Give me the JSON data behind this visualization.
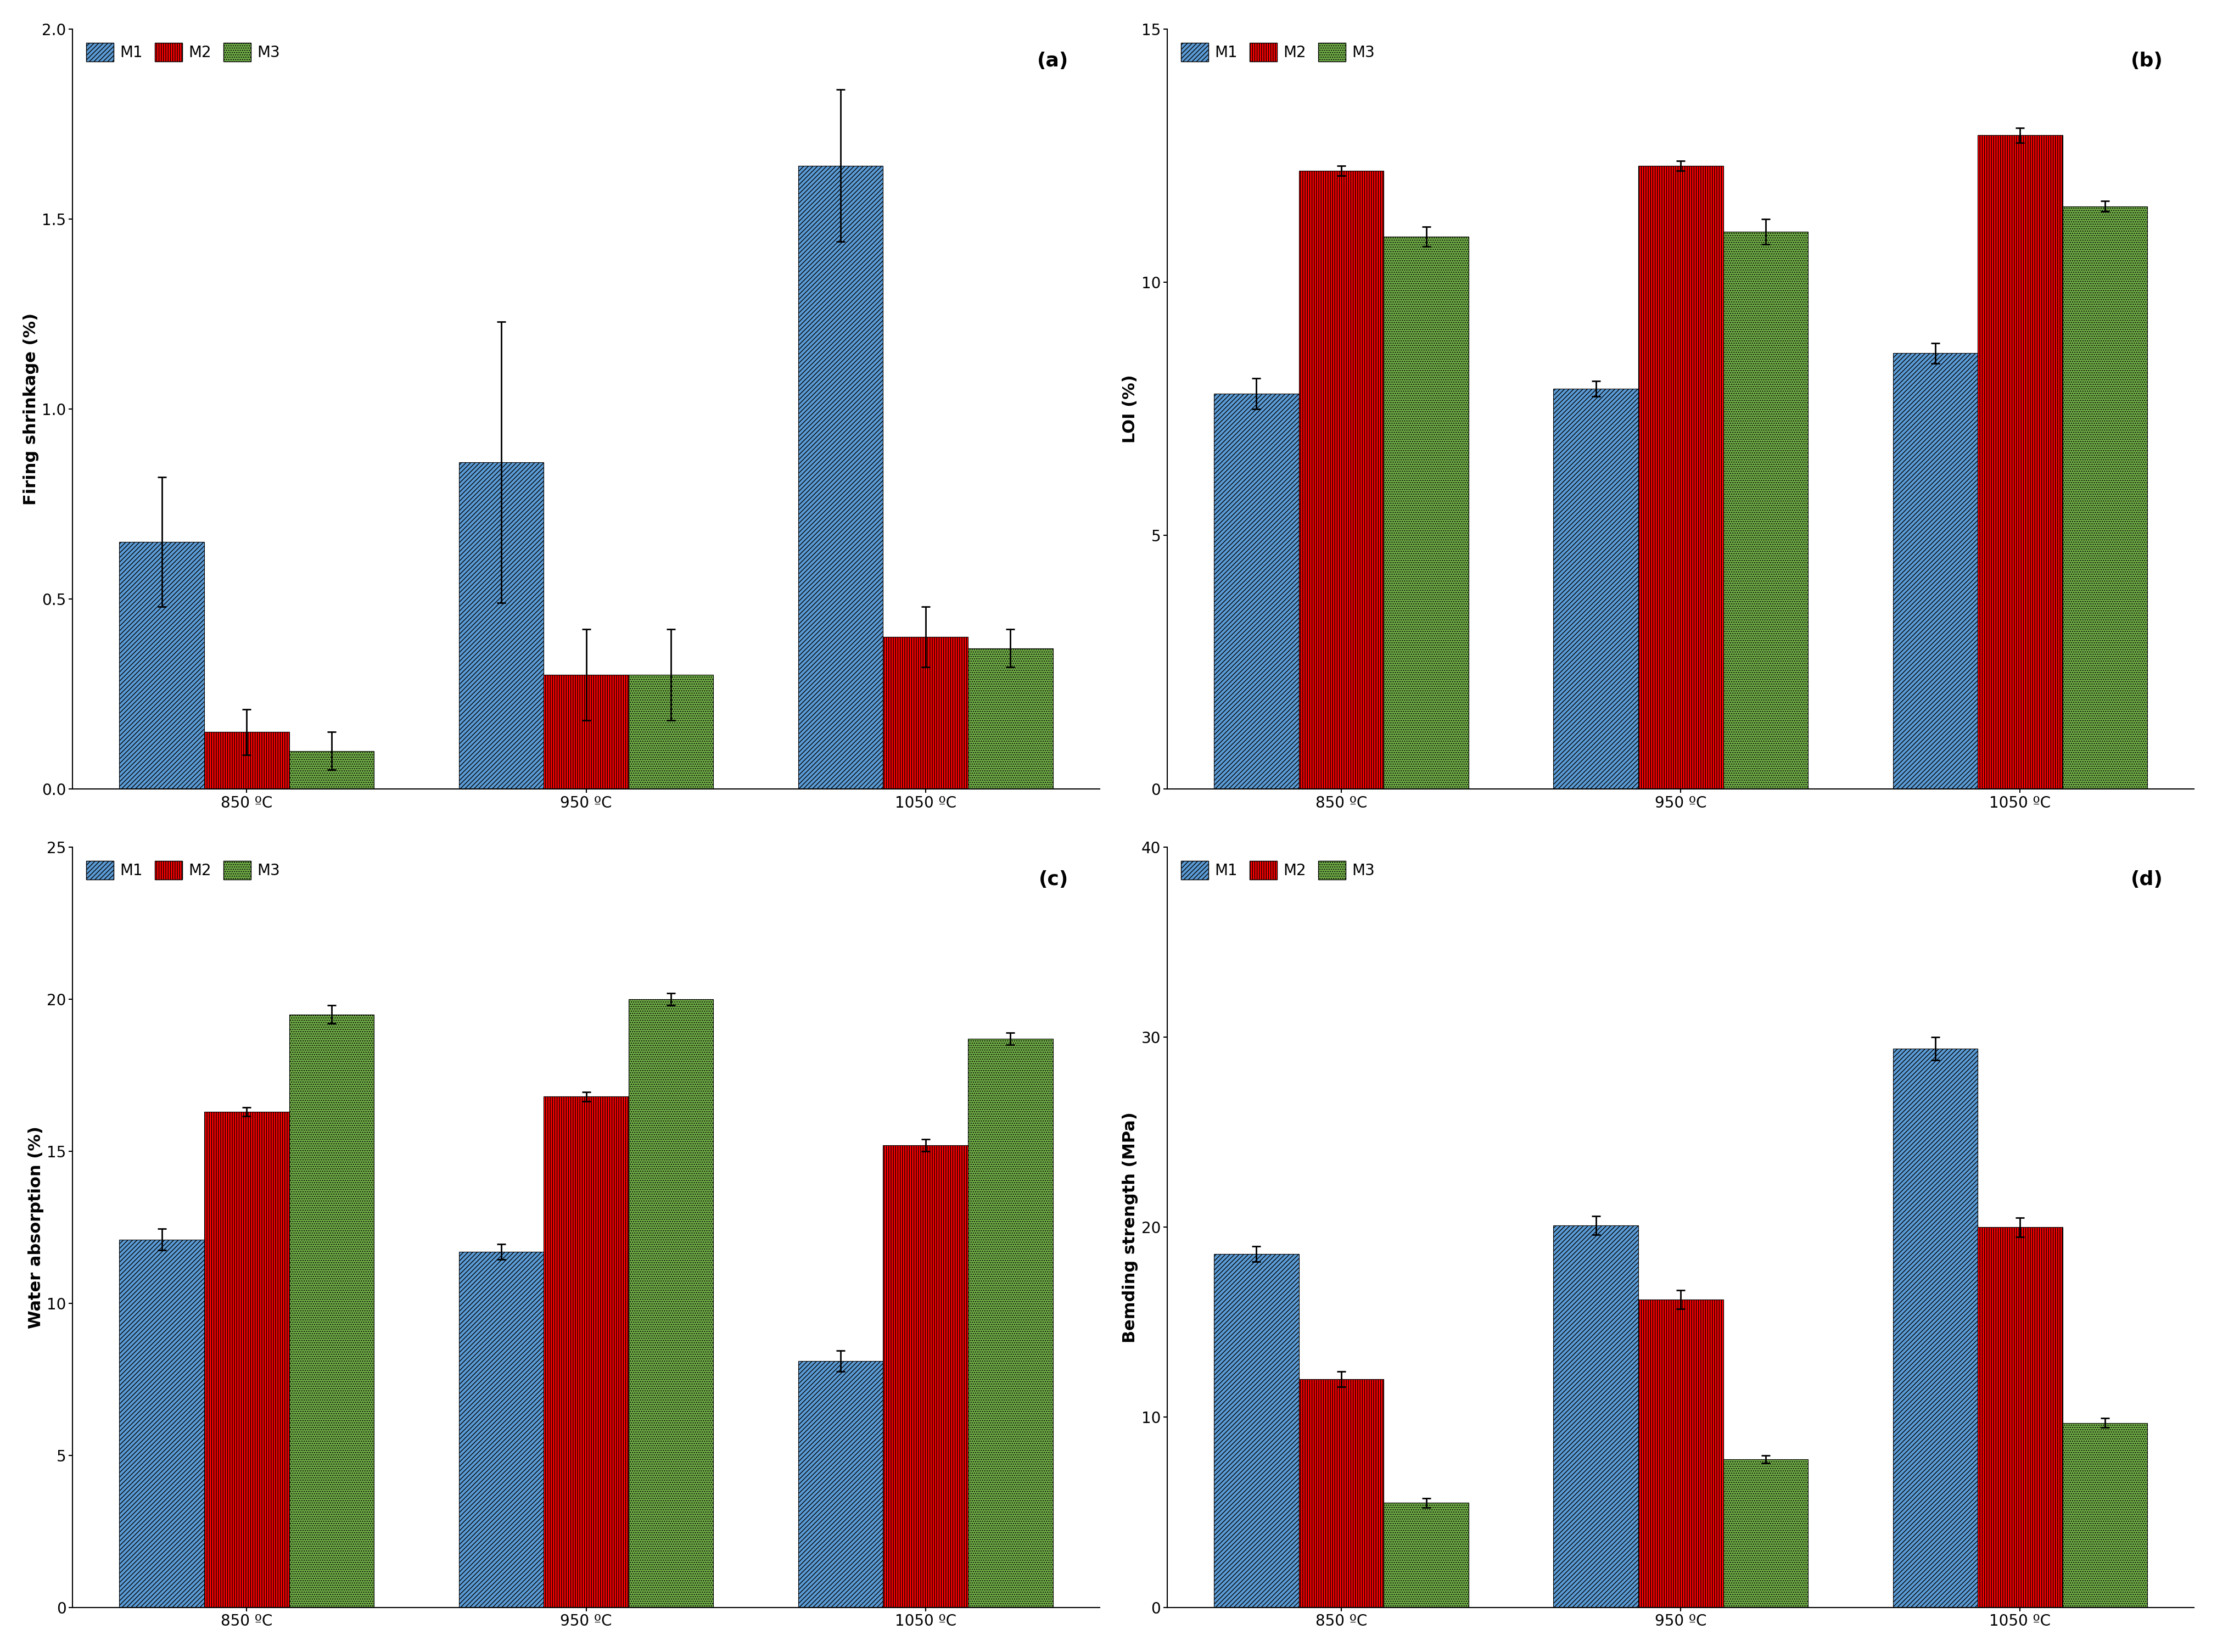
{
  "subplot_a": {
    "title": "(a)",
    "ylabel": "Firing shrinkage (%)",
    "ylim": [
      0,
      2
    ],
    "yticks": [
      0,
      0.5,
      1.0,
      1.5,
      2.0
    ],
    "temps": [
      "850 ºC",
      "950 ºC",
      "1050 ºC"
    ],
    "M1_vals": [
      0.65,
      0.86,
      1.64
    ],
    "M2_vals": [
      0.15,
      0.3,
      0.4
    ],
    "M3_vals": [
      0.1,
      0.3,
      0.37
    ],
    "M1_err": [
      0.17,
      0.37,
      0.2
    ],
    "M2_err": [
      0.06,
      0.12,
      0.08
    ],
    "M3_err": [
      0.05,
      0.12,
      0.05
    ]
  },
  "subplot_b": {
    "title": "(b)",
    "ylabel": "LOI (%)",
    "ylim": [
      0,
      15
    ],
    "yticks": [
      0,
      5,
      10,
      15
    ],
    "temps": [
      "850 ºC",
      "950 ºC",
      "1050 ºC"
    ],
    "M1_vals": [
      7.8,
      7.9,
      8.6
    ],
    "M2_vals": [
      12.2,
      12.3,
      12.9
    ],
    "M3_vals": [
      10.9,
      11.0,
      11.5
    ],
    "M1_err": [
      0.3,
      0.15,
      0.2
    ],
    "M2_err": [
      0.1,
      0.1,
      0.15
    ],
    "M3_err": [
      0.2,
      0.25,
      0.1
    ]
  },
  "subplot_c": {
    "title": "(c)",
    "ylabel": "Water absorption (%)",
    "ylim": [
      0,
      25
    ],
    "yticks": [
      0,
      5,
      10,
      15,
      20,
      25
    ],
    "temps": [
      "850 ºC",
      "950 ºC",
      "1050 ºC"
    ],
    "M1_vals": [
      12.1,
      11.7,
      8.1
    ],
    "M2_vals": [
      16.3,
      16.8,
      15.2
    ],
    "M3_vals": [
      19.5,
      20.0,
      18.7
    ],
    "M1_err": [
      0.35,
      0.25,
      0.35
    ],
    "M2_err": [
      0.15,
      0.15,
      0.2
    ],
    "M3_err": [
      0.3,
      0.2,
      0.2
    ]
  },
  "subplot_d": {
    "title": "(d)",
    "ylabel": "Bemding strength (MPa)",
    "ylim": [
      0,
      40
    ],
    "yticks": [
      0,
      10,
      20,
      30,
      40
    ],
    "temps": [
      "850 ºC",
      "950 ºC",
      "1050 ºC"
    ],
    "M1_vals": [
      18.6,
      20.1,
      29.4
    ],
    "M2_vals": [
      12.0,
      16.2,
      20.0
    ],
    "M3_vals": [
      5.5,
      7.8,
      9.7
    ],
    "M1_err": [
      0.4,
      0.5,
      0.6
    ],
    "M2_err": [
      0.4,
      0.5,
      0.5
    ],
    "M3_err": [
      0.25,
      0.2,
      0.25
    ]
  },
  "M1_color": "#5B9BD5",
  "M2_color": "#FF0000",
  "M3_color": "#70AD47",
  "bar_width": 0.25,
  "background_color": "#FFFFFF",
  "label_fontsize": 22,
  "tick_fontsize": 20,
  "legend_fontsize": 20,
  "title_fontsize": 26
}
